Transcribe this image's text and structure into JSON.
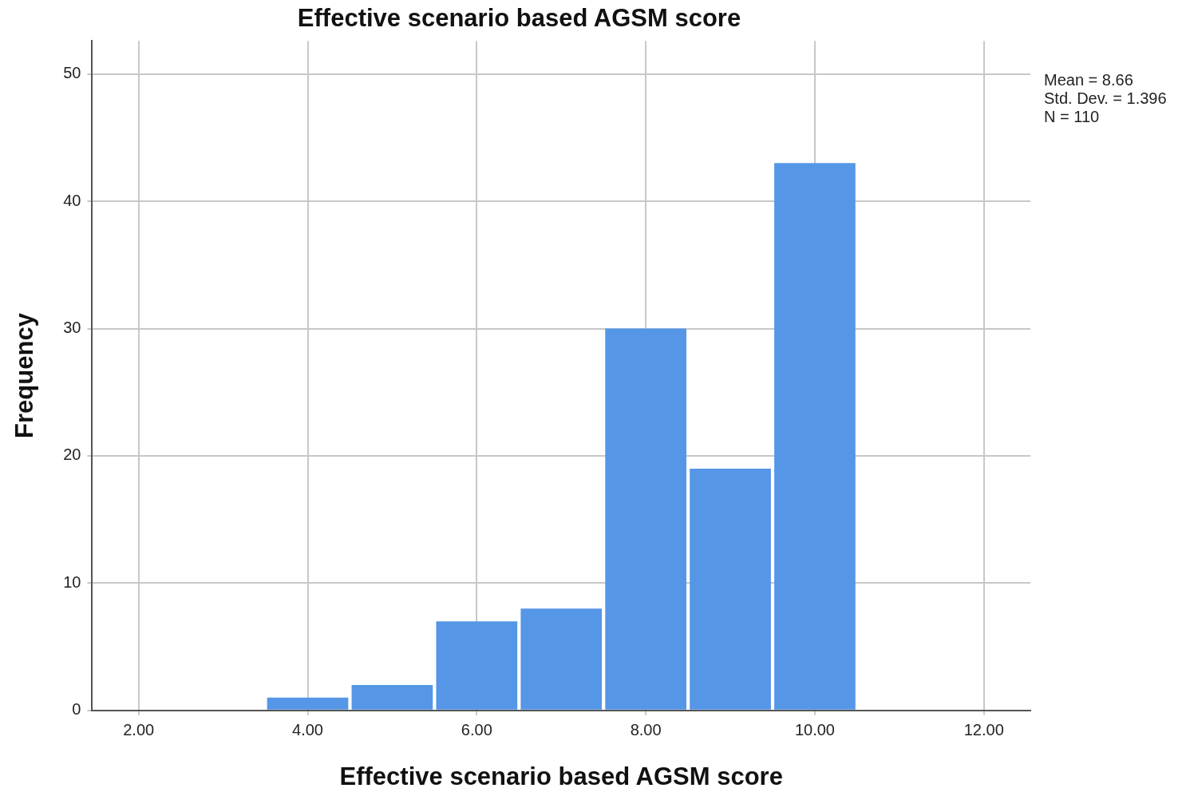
{
  "chart_data": {
    "type": "histogram",
    "title": "Effective scenario based AGSM score",
    "xlabel": "Effective scenario based AGSM score",
    "ylabel": "Frequency",
    "bins": [
      3.5,
      4.5,
      5.5,
      6.5,
      7.5,
      8.5,
      9.5,
      10.5
    ],
    "values": [
      1,
      2,
      7,
      8,
      30,
      19,
      43
    ],
    "color": "#5596e6",
    "xlim": [
      1.45,
      12.55
    ],
    "xticks": [
      {
        "value": 2,
        "label": "2.00"
      },
      {
        "value": 4,
        "label": "4.00"
      },
      {
        "value": 6,
        "label": "6.00"
      },
      {
        "value": 8,
        "label": "8.00"
      },
      {
        "value": 10,
        "label": "10.00"
      },
      {
        "value": 12,
        "label": "12.00"
      }
    ],
    "ylim": [
      0,
      52.6
    ],
    "yticks": [
      0,
      10,
      20,
      30,
      40,
      50
    ],
    "grid": true,
    "legend": false,
    "annotations": [
      "Mean = 8.66",
      "Std. Dev. = 1.396",
      "N = 110"
    ]
  }
}
